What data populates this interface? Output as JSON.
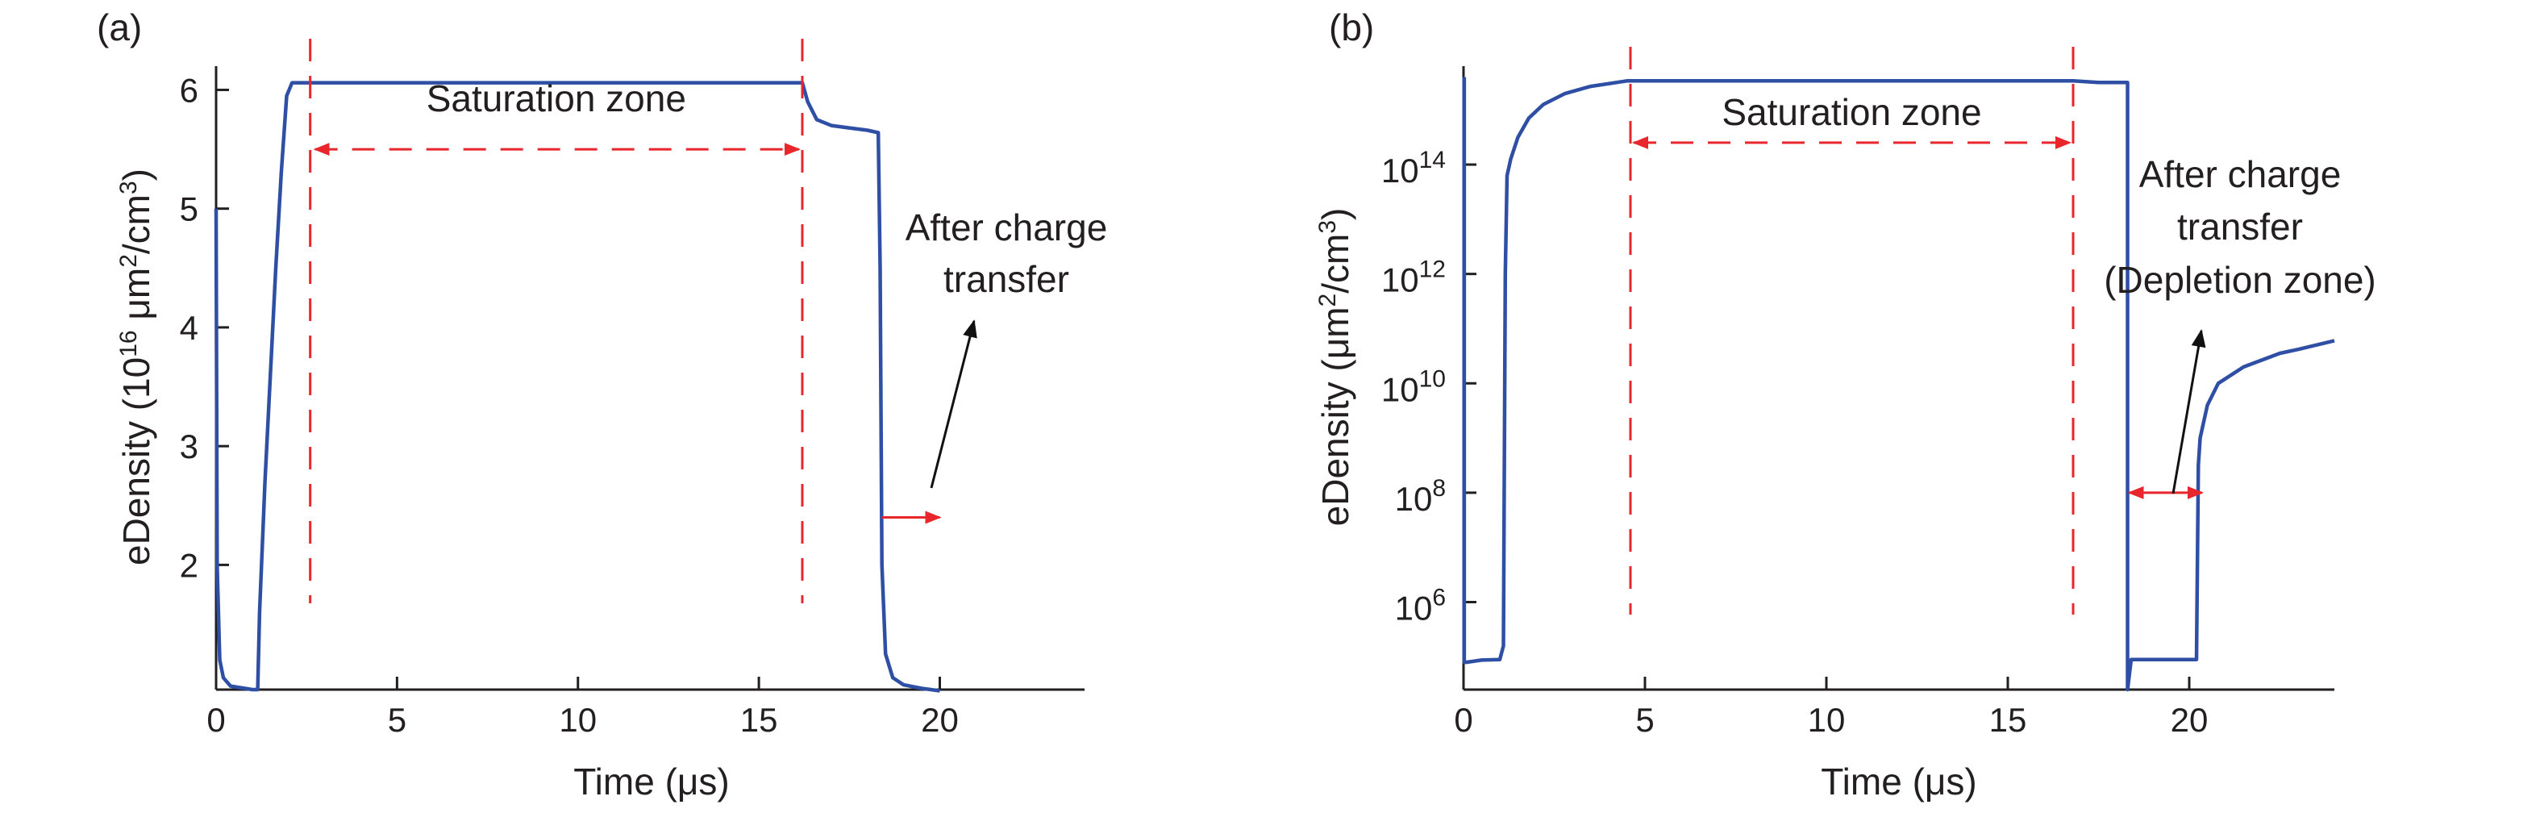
{
  "colors": {
    "curve": "#2e4fa3",
    "annotation": "#e8262b",
    "axis": "#231f20",
    "arrow": "#111111"
  },
  "chart_data": [
    {
      "panel": "(a)",
      "type": "line",
      "xlabel": "Time (μs)",
      "ylabel_parts": [
        "eDensity (10",
        "16",
        " μm",
        "2",
        "/cm",
        "3",
        ")"
      ],
      "xlim": [
        0,
        24
      ],
      "ylim": [
        0.95,
        6.2
      ],
      "xticks": [
        0,
        5,
        10,
        15,
        20
      ],
      "yticks": [
        2,
        3,
        4,
        5,
        6
      ],
      "grid": false,
      "series": [
        {
          "x": [
            0,
            0.03,
            0.1,
            0.2,
            0.4,
            0.6,
            0.8,
            1.0,
            1.15,
            1.2,
            1.35,
            1.5,
            1.65,
            1.8,
            1.95,
            2.1,
            2.3,
            3.0,
            5,
            10,
            15,
            16.2,
            16.35,
            16.6,
            17.0,
            17.5,
            18.0,
            18.3,
            18.35,
            18.4,
            18.5,
            18.7,
            19.0,
            19.5,
            20.0
          ],
          "y": [
            5.0,
            2.0,
            1.2,
            1.05,
            0.98,
            0.97,
            0.96,
            0.95,
            0.95,
            1.6,
            2.7,
            3.6,
            4.5,
            5.3,
            5.95,
            6.06,
            6.06,
            6.06,
            6.06,
            6.06,
            6.06,
            6.06,
            5.9,
            5.75,
            5.7,
            5.68,
            5.66,
            5.64,
            4.5,
            2.0,
            1.25,
            1.05,
            0.99,
            0.96,
            0.94
          ]
        }
      ],
      "saturation_zone": {
        "label": "Saturation zone",
        "x_start": 2.6,
        "x_end": 16.2,
        "arrow_y": 5.5
      },
      "after_label": [
        "After charge",
        "transfer"
      ],
      "after_arrow": {
        "x_start": 18.4,
        "x_end": 20.0,
        "y": 2.4
      }
    },
    {
      "panel": "(b)",
      "type": "line",
      "log_y": true,
      "xlabel": "Time (μs)",
      "ylabel_parts": [
        "eDensity (μm",
        "2",
        "/cm",
        "3",
        ")"
      ],
      "xlim": [
        0,
        24
      ],
      "ylim_exp": [
        4.4,
        15.8
      ],
      "xticks": [
        0,
        5,
        10,
        15,
        20
      ],
      "yticks": [
        {
          "base": "10",
          "exp": "6"
        },
        {
          "base": "10",
          "exp": "8"
        },
        {
          "base": "10",
          "exp": "10"
        },
        {
          "base": "10",
          "exp": "12"
        },
        {
          "base": "10",
          "exp": "14"
        }
      ],
      "grid": false,
      "series": [
        {
          "x_log": [
            0.02,
            0.02,
            0.08,
            0.5,
            1.0,
            1.1,
            1.15,
            1.2,
            1.3,
            1.5,
            1.8,
            2.2,
            2.8,
            3.5,
            4.5,
            6,
            10,
            15,
            16.8,
            17.5,
            18.3,
            18.3,
            18.4,
            18.5,
            19,
            20.0,
            20.2,
            20.25,
            20.3,
            20.5,
            20.8,
            21.5,
            22.5,
            23.0,
            24.0
          ],
          "y_exp": [
            15.6,
            4.9,
            4.9,
            4.94,
            4.95,
            5.2,
            12.0,
            13.8,
            14.1,
            14.5,
            14.85,
            15.1,
            15.3,
            15.43,
            15.53,
            15.53,
            15.53,
            15.53,
            15.53,
            15.5,
            15.5,
            4.4,
            4.95,
            4.95,
            4.95,
            4.95,
            4.95,
            8.5,
            9.0,
            9.6,
            10.0,
            10.3,
            10.55,
            10.62,
            10.78
          ]
        }
      ],
      "saturation_zone": {
        "label": "Saturation zone",
        "x_start": 4.6,
        "x_end": 16.8,
        "arrow_y_exp": 14.4
      },
      "after_label": [
        "After charge",
        "transfer",
        "(Depletion zone)"
      ],
      "after_arrow": {
        "x_start": 18.3,
        "x_end": 20.4,
        "y_exp": 8.0
      }
    }
  ]
}
